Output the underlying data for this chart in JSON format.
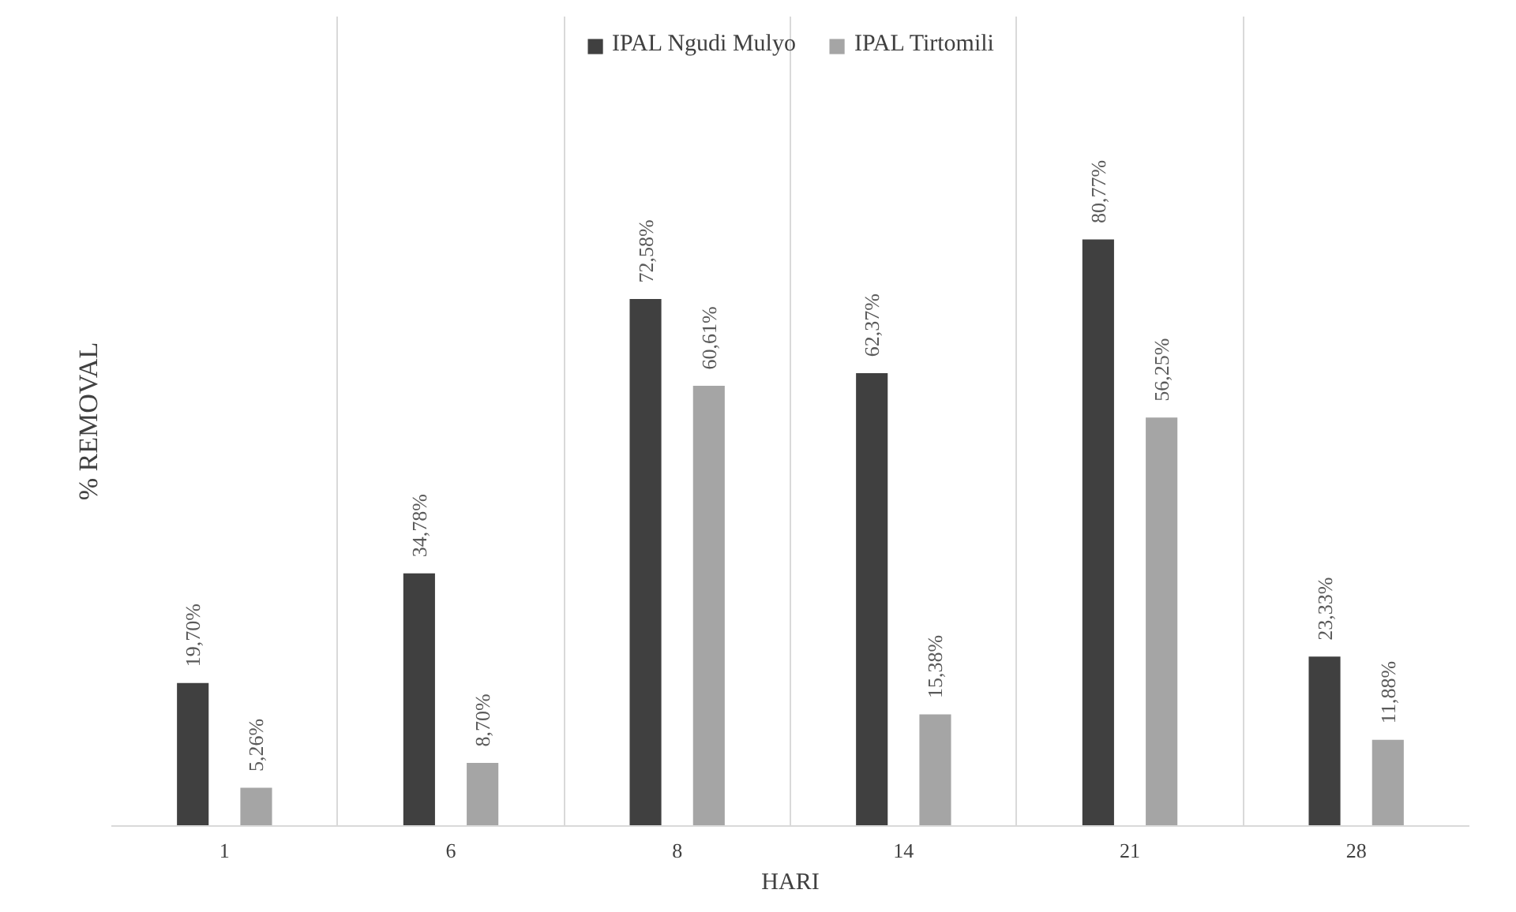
{
  "chart_data": {
    "type": "bar",
    "xlabel": "HARI",
    "ylabel": "% REMOVAL",
    "categories": [
      "1",
      "6",
      "8",
      "14",
      "21",
      "28"
    ],
    "series": [
      {
        "name": "IPAL Ngudi Mulyo",
        "color": "#404040",
        "values": [
          19.7,
          34.78,
          72.58,
          62.37,
          80.77,
          23.33
        ],
        "value_labels": [
          "19,70%",
          "34,78%",
          "72,58%",
          "62,37%",
          "80,77%",
          "23,33%"
        ]
      },
      {
        "name": "IPAL Tirtomili",
        "color": "#a5a5a5",
        "values": [
          5.26,
          8.7,
          60.61,
          15.38,
          56.25,
          11.88
        ],
        "value_labels": [
          "5,26%",
          "8,70%",
          "60,61%",
          "15,38%",
          "56,25%",
          "11,88%"
        ]
      }
    ],
    "legend": "top",
    "grid": "x"
  }
}
